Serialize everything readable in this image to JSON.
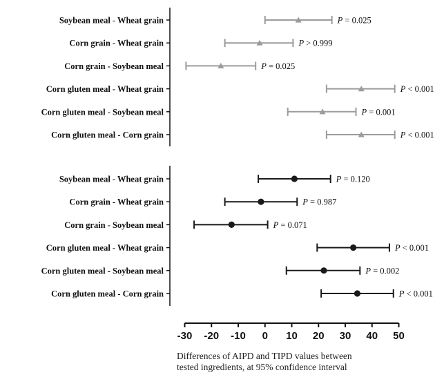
{
  "chart_data": {
    "type": "forest",
    "xlabel_lines": [
      "Differences of AIPD and TIPD values between",
      "tested ingredients, at 95% confidence interval"
    ],
    "xlim": [
      -30,
      50
    ],
    "xticks": [
      "-30",
      "-20",
      "-10",
      "0",
      "10",
      "20",
      "30",
      "40",
      "50"
    ],
    "xtick_values": [
      -30,
      -20,
      -10,
      0,
      10,
      20,
      30,
      40,
      50
    ],
    "panels": [
      {
        "marker": "triangle",
        "color": "#9b9b9b",
        "rows": [
          {
            "label": "Soybean meal - Wheat grain",
            "estimate": 12.5,
            "ci_low": 0,
            "ci_high": 25,
            "p_prefix": "P",
            "p_text": " = 0.025"
          },
          {
            "label": "Corn grain - Wheat grain",
            "estimate": -2,
            "ci_low": -15,
            "ci_high": 10.5,
            "p_prefix": "P",
            "p_text": " > 0.999"
          },
          {
            "label": "Corn grain - Soybean meal",
            "estimate": -16.5,
            "ci_low": -29.5,
            "ci_high": -3.5,
            "p_prefix": "P",
            "p_text": " = 0.025"
          },
          {
            "label": "Corn gluten meal - Wheat grain",
            "estimate": 36,
            "ci_low": 23,
            "ci_high": 48.5,
            "p_prefix": "P",
            "p_text": " < 0.001"
          },
          {
            "label": "Corn gluten meal - Soybean meal",
            "estimate": 21.5,
            "ci_low": 8.5,
            "ci_high": 34,
            "p_prefix": "P",
            "p_text": " = 0.001"
          },
          {
            "label": "Corn gluten meal - Corn grain",
            "estimate": 36,
            "ci_low": 23,
            "ci_high": 48.5,
            "p_prefix": "P",
            "p_text": " < 0.001"
          }
        ]
      },
      {
        "marker": "circle",
        "color": "#1a1a1a",
        "rows": [
          {
            "label": "Soybean meal - Wheat grain",
            "estimate": 11,
            "ci_low": -2.5,
            "ci_high": 24.5,
            "p_prefix": "P",
            "p_text": " = 0.120"
          },
          {
            "label": "Corn grain - Wheat grain",
            "estimate": -1.5,
            "ci_low": -15,
            "ci_high": 12,
            "p_prefix": "P",
            "p_text": " = 0.987"
          },
          {
            "label": "Corn grain - Soybean meal",
            "estimate": -12.5,
            "ci_low": -26.5,
            "ci_high": 1,
            "p_prefix": "P",
            "p_text": " = 0.071"
          },
          {
            "label": "Corn gluten meal - Wheat grain",
            "estimate": 33,
            "ci_low": 19.5,
            "ci_high": 46.5,
            "p_prefix": "P",
            "p_text": " < 0.001"
          },
          {
            "label": "Corn gluten meal - Soybean meal",
            "estimate": 22,
            "ci_low": 8,
            "ci_high": 35.5,
            "p_prefix": "P",
            "p_text": " = 0.002"
          },
          {
            "label": "Corn gluten meal - Corn grain",
            "estimate": 34.5,
            "ci_low": 21,
            "ci_high": 48,
            "p_prefix": "P",
            "p_text": " < 0.001"
          }
        ]
      }
    ]
  }
}
